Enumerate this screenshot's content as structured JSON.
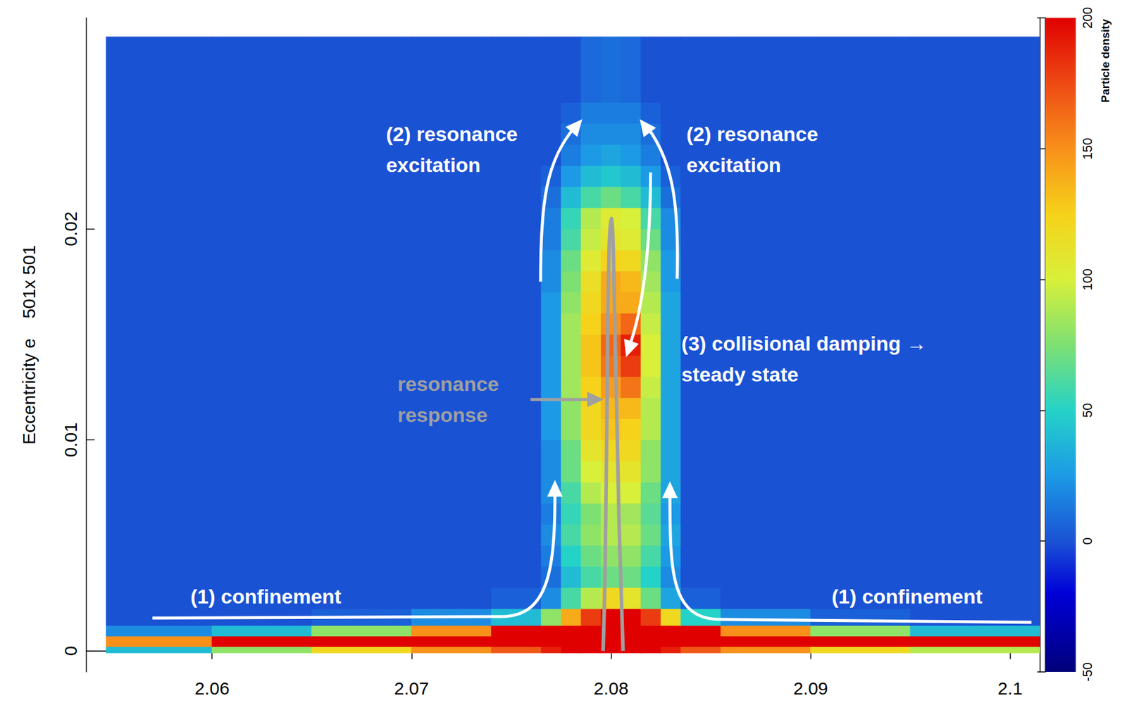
{
  "chart_data": {
    "type": "heatmap",
    "y_label": "Eccentricity e    501x 501",
    "xlim": [
      2.0537,
      2.1015
    ],
    "xticks": [
      2.06,
      2.07,
      2.08,
      2.09,
      2.1
    ],
    "ylim": [
      -0.001,
      0.03
    ],
    "yticks": [
      0,
      0.01,
      0.02
    ],
    "grid": false,
    "heatmap": {
      "x_bins": [
        2.0547,
        2.06,
        2.065,
        2.07,
        2.074,
        2.0765,
        2.0775,
        2.0785,
        2.0795,
        2.0805,
        2.0815,
        2.0825,
        2.0835,
        2.0855,
        2.09,
        2.095,
        2.1015
      ],
      "y_bins": [
        -0.0001,
        0.0002,
        0.0007,
        0.0012,
        0.002,
        0.003,
        0.004,
        0.005,
        0.006,
        0.007,
        0.008,
        0.009,
        0.01,
        0.011,
        0.012,
        0.013,
        0.014,
        0.015,
        0.016,
        0.017,
        0.018,
        0.019,
        0.02,
        0.021,
        0.022,
        0.023,
        0.024,
        0.025,
        0.026,
        0.0291
      ],
      "cells": [
        [
          40,
          80,
          120,
          150,
          170,
          190,
          200,
          200,
          200,
          200,
          200,
          190,
          170,
          150,
          120,
          90
        ],
        [
          150,
          200,
          200,
          200,
          200,
          200,
          200,
          200,
          200,
          200,
          200,
          200,
          200,
          200,
          200,
          200
        ],
        [
          20,
          40,
          80,
          150,
          200,
          200,
          200,
          200,
          200,
          200,
          200,
          200,
          200,
          150,
          80,
          40
        ],
        [
          0,
          0,
          5,
          20,
          40,
          80,
          140,
          180,
          200,
          200,
          180,
          120,
          50,
          20,
          5,
          0
        ],
        [
          0,
          0,
          0,
          0,
          5,
          20,
          60,
          90,
          120,
          110,
          70,
          30,
          5,
          0,
          0,
          0
        ],
        [
          0,
          0,
          0,
          0,
          0,
          10,
          40,
          60,
          70,
          70,
          50,
          20,
          0,
          0,
          0,
          0
        ],
        [
          0,
          0,
          0,
          0,
          0,
          15,
          50,
          70,
          80,
          80,
          60,
          25,
          0,
          0,
          0,
          0
        ],
        [
          0,
          0,
          0,
          0,
          0,
          20,
          60,
          80,
          90,
          90,
          70,
          30,
          0,
          0,
          0,
          0
        ],
        [
          0,
          0,
          0,
          0,
          0,
          15,
          55,
          75,
          90,
          85,
          65,
          25,
          0,
          0,
          0,
          0
        ],
        [
          0,
          0,
          0,
          0,
          0,
          20,
          60,
          90,
          100,
          100,
          70,
          30,
          0,
          0,
          0,
          0
        ],
        [
          0,
          0,
          0,
          0,
          0,
          20,
          70,
          100,
          110,
          110,
          80,
          30,
          0,
          0,
          0,
          0
        ],
        [
          0,
          0,
          0,
          0,
          0,
          20,
          70,
          110,
          120,
          120,
          80,
          30,
          0,
          0,
          0,
          0
        ],
        [
          0,
          0,
          0,
          0,
          0,
          25,
          80,
          120,
          130,
          125,
          90,
          30,
          0,
          0,
          0,
          0
        ],
        [
          0,
          0,
          0,
          0,
          0,
          25,
          80,
          120,
          135,
          135,
          90,
          30,
          0,
          0,
          0,
          0
        ],
        [
          0,
          0,
          0,
          0,
          0,
          25,
          85,
          125,
          145,
          160,
          95,
          30,
          0,
          0,
          0,
          0
        ],
        [
          0,
          0,
          0,
          0,
          0,
          25,
          85,
          130,
          160,
          180,
          100,
          30,
          0,
          0,
          0,
          0
        ],
        [
          0,
          0,
          0,
          0,
          0,
          25,
          85,
          130,
          165,
          190,
          100,
          30,
          0,
          0,
          0,
          0
        ],
        [
          0,
          0,
          0,
          0,
          0,
          25,
          85,
          125,
          150,
          165,
          95,
          30,
          0,
          0,
          0,
          0
        ],
        [
          0,
          0,
          0,
          0,
          0,
          25,
          80,
          120,
          140,
          140,
          90,
          30,
          0,
          0,
          0,
          0
        ],
        [
          0,
          0,
          0,
          0,
          0,
          20,
          75,
          115,
          140,
          135,
          85,
          25,
          0,
          0,
          0,
          0
        ],
        [
          0,
          0,
          0,
          0,
          0,
          20,
          70,
          105,
          125,
          120,
          80,
          25,
          0,
          0,
          0,
          0
        ],
        [
          0,
          0,
          0,
          0,
          0,
          15,
          60,
          95,
          110,
          105,
          70,
          20,
          0,
          0,
          0,
          0
        ],
        [
          0,
          0,
          0,
          0,
          0,
          15,
          55,
          90,
          105,
          100,
          60,
          20,
          0,
          0,
          0,
          0
        ],
        [
          0,
          0,
          0,
          0,
          0,
          10,
          40,
          60,
          70,
          60,
          40,
          10,
          0,
          0,
          0,
          0
        ],
        [
          0,
          0,
          0,
          0,
          0,
          5,
          25,
          40,
          45,
          40,
          25,
          5,
          0,
          0,
          0,
          0
        ],
        [
          0,
          0,
          0,
          0,
          0,
          0,
          15,
          25,
          30,
          25,
          15,
          0,
          0,
          0,
          0,
          0
        ],
        [
          0,
          0,
          0,
          0,
          0,
          0,
          10,
          20,
          20,
          20,
          10,
          0,
          0,
          0,
          0,
          0
        ],
        [
          0,
          0,
          0,
          0,
          0,
          0,
          5,
          15,
          15,
          15,
          5,
          0,
          0,
          0,
          0,
          0
        ],
        [
          0,
          0,
          0,
          0,
          0,
          0,
          0,
          8,
          10,
          8,
          0,
          0,
          0,
          0,
          0,
          0
        ]
      ],
      "colorbar": {
        "title": "Particle density",
        "lim": [
          -50,
          200
        ],
        "ticks": [
          -50,
          0,
          50,
          100,
          150,
          200
        ]
      }
    },
    "series": [
      {
        "type": "line",
        "color": "#a0a0a0",
        "x": [
          2.0796,
          2.0797,
          2.0798,
          2.0799,
          2.08,
          2.0802,
          2.0804,
          2.0806
        ],
        "values": [
          0,
          0.004,
          0.012,
          0.019,
          0.0205,
          0.015,
          0.006,
          0
        ]
      }
    ],
    "annotations": [
      {
        "text": "(1) confinement",
        "color": "#ffffff"
      },
      {
        "text": "(1) confinement",
        "color": "#ffffff"
      },
      {
        "text": "(2) resonance excitation",
        "color": "#ffffff"
      },
      {
        "text": "(2) resonance excitation",
        "color": "#ffffff"
      },
      {
        "text": "(3) collisional damping → steady state",
        "color": "#ffffff"
      },
      {
        "text": "resonance response",
        "color": "#a0a0a0"
      }
    ]
  }
}
